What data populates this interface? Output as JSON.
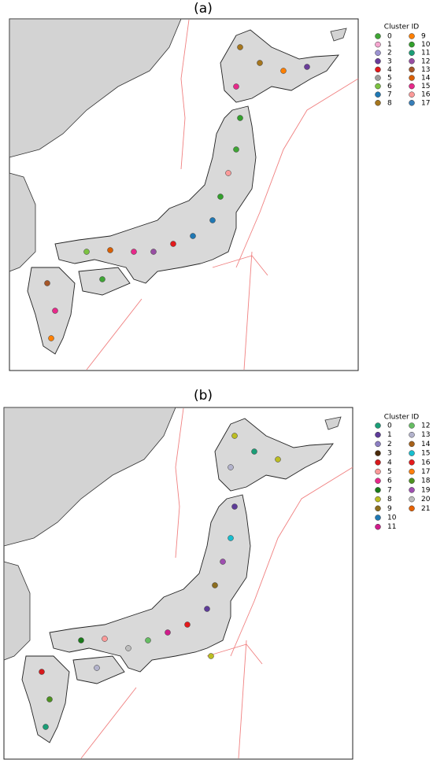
{
  "panels": [
    {
      "title": "(a)",
      "legend_title": "Cluster ID",
      "items": [
        {
          "label": "0",
          "color": "#3fa535"
        },
        {
          "label": "1",
          "color": "#f4a6cf"
        },
        {
          "label": "2",
          "color": "#9c93d1"
        },
        {
          "label": "3",
          "color": "#6a3d9a"
        },
        {
          "label": "4",
          "color": "#e31a1c"
        },
        {
          "label": "5",
          "color": "#9e9e9e"
        },
        {
          "label": "6",
          "color": "#7cc242"
        },
        {
          "label": "7",
          "color": "#1f78b4"
        },
        {
          "label": "8",
          "color": "#a6761d"
        },
        {
          "label": "9",
          "color": "#ff7f00"
        },
        {
          "label": "10",
          "color": "#33a02c"
        },
        {
          "label": "11",
          "color": "#1b9e77"
        },
        {
          "label": "12",
          "color": "#984ea3"
        },
        {
          "label": "13",
          "color": "#a65628"
        },
        {
          "label": "14",
          "color": "#d95f02"
        },
        {
          "label": "15",
          "color": "#e7298a"
        },
        {
          "label": "16",
          "color": "#fb9a99"
        },
        {
          "label": "17",
          "color": "#377eb8"
        }
      ]
    },
    {
      "title": "(b)",
      "legend_title": "Cluster ID",
      "items": [
        {
          "label": "0",
          "color": "#1b9e77"
        },
        {
          "label": "1",
          "color": "#5e3c99"
        },
        {
          "label": "2",
          "color": "#8c7fc2"
        },
        {
          "label": "3",
          "color": "#4a2a0a"
        },
        {
          "label": "4",
          "color": "#d7191c"
        },
        {
          "label": "5",
          "color": "#fb9a99"
        },
        {
          "label": "6",
          "color": "#e7298a"
        },
        {
          "label": "7",
          "color": "#1a7a1a"
        },
        {
          "label": "8",
          "color": "#bcbd22"
        },
        {
          "label": "9",
          "color": "#8c6d1f"
        },
        {
          "label": "10",
          "color": "#1f78b4"
        },
        {
          "label": "11",
          "color": "#d01c8b"
        },
        {
          "label": "12",
          "color": "#66bd63"
        },
        {
          "label": "13",
          "color": "#b3b3cc"
        },
        {
          "label": "14",
          "color": "#a6611a"
        },
        {
          "label": "15",
          "color": "#17becf"
        },
        {
          "label": "16",
          "color": "#e41a1c"
        },
        {
          "label": "17",
          "color": "#ff7f0e"
        },
        {
          "label": "18",
          "color": "#4d9221"
        },
        {
          "label": "19",
          "color": "#9e4fb0"
        },
        {
          "label": "20",
          "color": "#bdbdbd"
        },
        {
          "label": "21",
          "color": "#e66101"
        }
      ]
    }
  ]
}
